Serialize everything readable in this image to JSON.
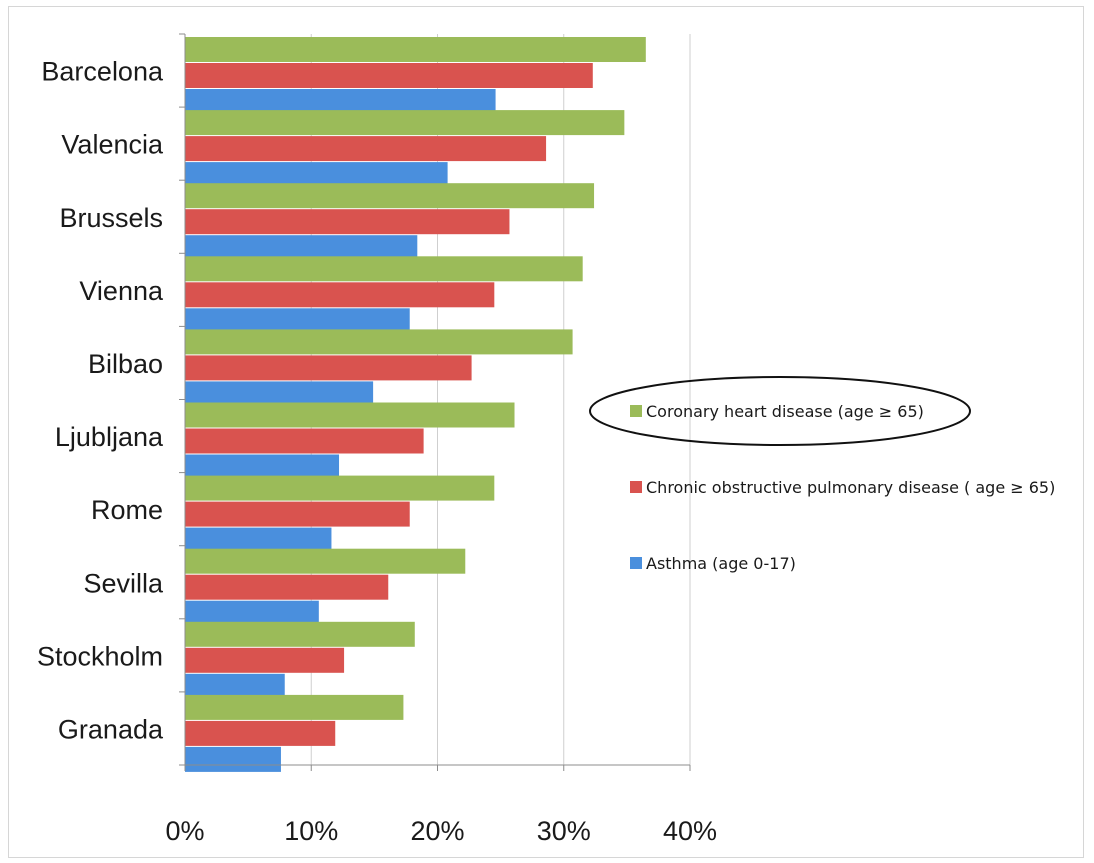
{
  "chart_data": {
    "type": "bar",
    "orientation": "horizontal",
    "title": "",
    "xlabel": "",
    "ylabel": "",
    "categories": [
      "Barcelona",
      "Valencia",
      "Brussels",
      "Vienna",
      "Bilbao",
      "Ljubljana",
      "Rome",
      "Sevilla",
      "Stockholm",
      "Granada"
    ],
    "series": [
      {
        "name": "Coronary heart disease (age ≥ 65)",
        "color": "#9bbb59",
        "values": [
          36.5,
          34.8,
          32.4,
          31.5,
          30.7,
          26.1,
          24.5,
          22.2,
          18.2,
          17.3
        ]
      },
      {
        "name": "Chronic obstructive pulmonary disease ( age ≥ 65)",
        "color": "#d9534f",
        "values": [
          32.3,
          28.6,
          25.7,
          24.5,
          22.7,
          18.9,
          17.8,
          16.1,
          12.6,
          11.9
        ]
      },
      {
        "name": "Asthma (age 0-17)",
        "color": "#4a8fdd",
        "values": [
          24.6,
          20.8,
          18.4,
          17.8,
          14.9,
          12.2,
          11.6,
          10.6,
          7.9,
          7.6
        ]
      }
    ],
    "xlim": [
      0,
      40
    ],
    "xticks": [
      0,
      10,
      20,
      30,
      40
    ],
    "xtick_labels": [
      "0%",
      "10%",
      "20%",
      "30%",
      "40%"
    ],
    "grid": true,
    "legend_position": "right",
    "legend_highlight": "Coronary heart disease (age ≥ 65)"
  }
}
